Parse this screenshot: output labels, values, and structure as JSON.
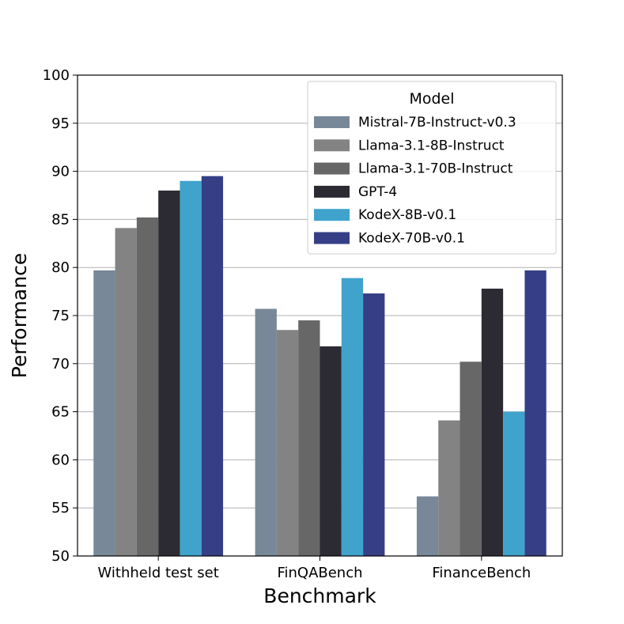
{
  "chart_data": {
    "type": "bar",
    "title": "",
    "xlabel": "Benchmark",
    "ylabel": "Performance",
    "ylim": [
      50,
      100
    ],
    "yticks": [
      "50",
      "55",
      "60",
      "65",
      "70",
      "75",
      "80",
      "85",
      "90",
      "95",
      "100"
    ],
    "grid": "horizontal",
    "categories": [
      "Withheld test set",
      "FinQABench",
      "FinanceBench"
    ],
    "legend": {
      "title": "Model",
      "placement": "top-right"
    },
    "series": [
      {
        "name": "Mistral-7B-Instruct-v0.3",
        "color": "#788898",
        "values": [
          79.7,
          75.7,
          56.2
        ]
      },
      {
        "name": "Llama-3.1-8B-Instruct",
        "color": "#838383",
        "values": [
          84.1,
          73.5,
          64.1
        ]
      },
      {
        "name": "Llama-3.1-70B-Instruct",
        "color": "#676767",
        "values": [
          85.2,
          74.5,
          70.2
        ]
      },
      {
        "name": "GPT-4",
        "color": "#2c2b34",
        "values": [
          88.0,
          71.8,
          77.8
        ]
      },
      {
        "name": "KodeX-8B-v0.1",
        "color": "#3fa3cc",
        "values": [
          89.0,
          78.9,
          65.0
        ]
      },
      {
        "name": "KodeX-70B-v0.1",
        "color": "#363f85",
        "values": [
          89.5,
          77.3,
          79.7
        ]
      }
    ]
  }
}
